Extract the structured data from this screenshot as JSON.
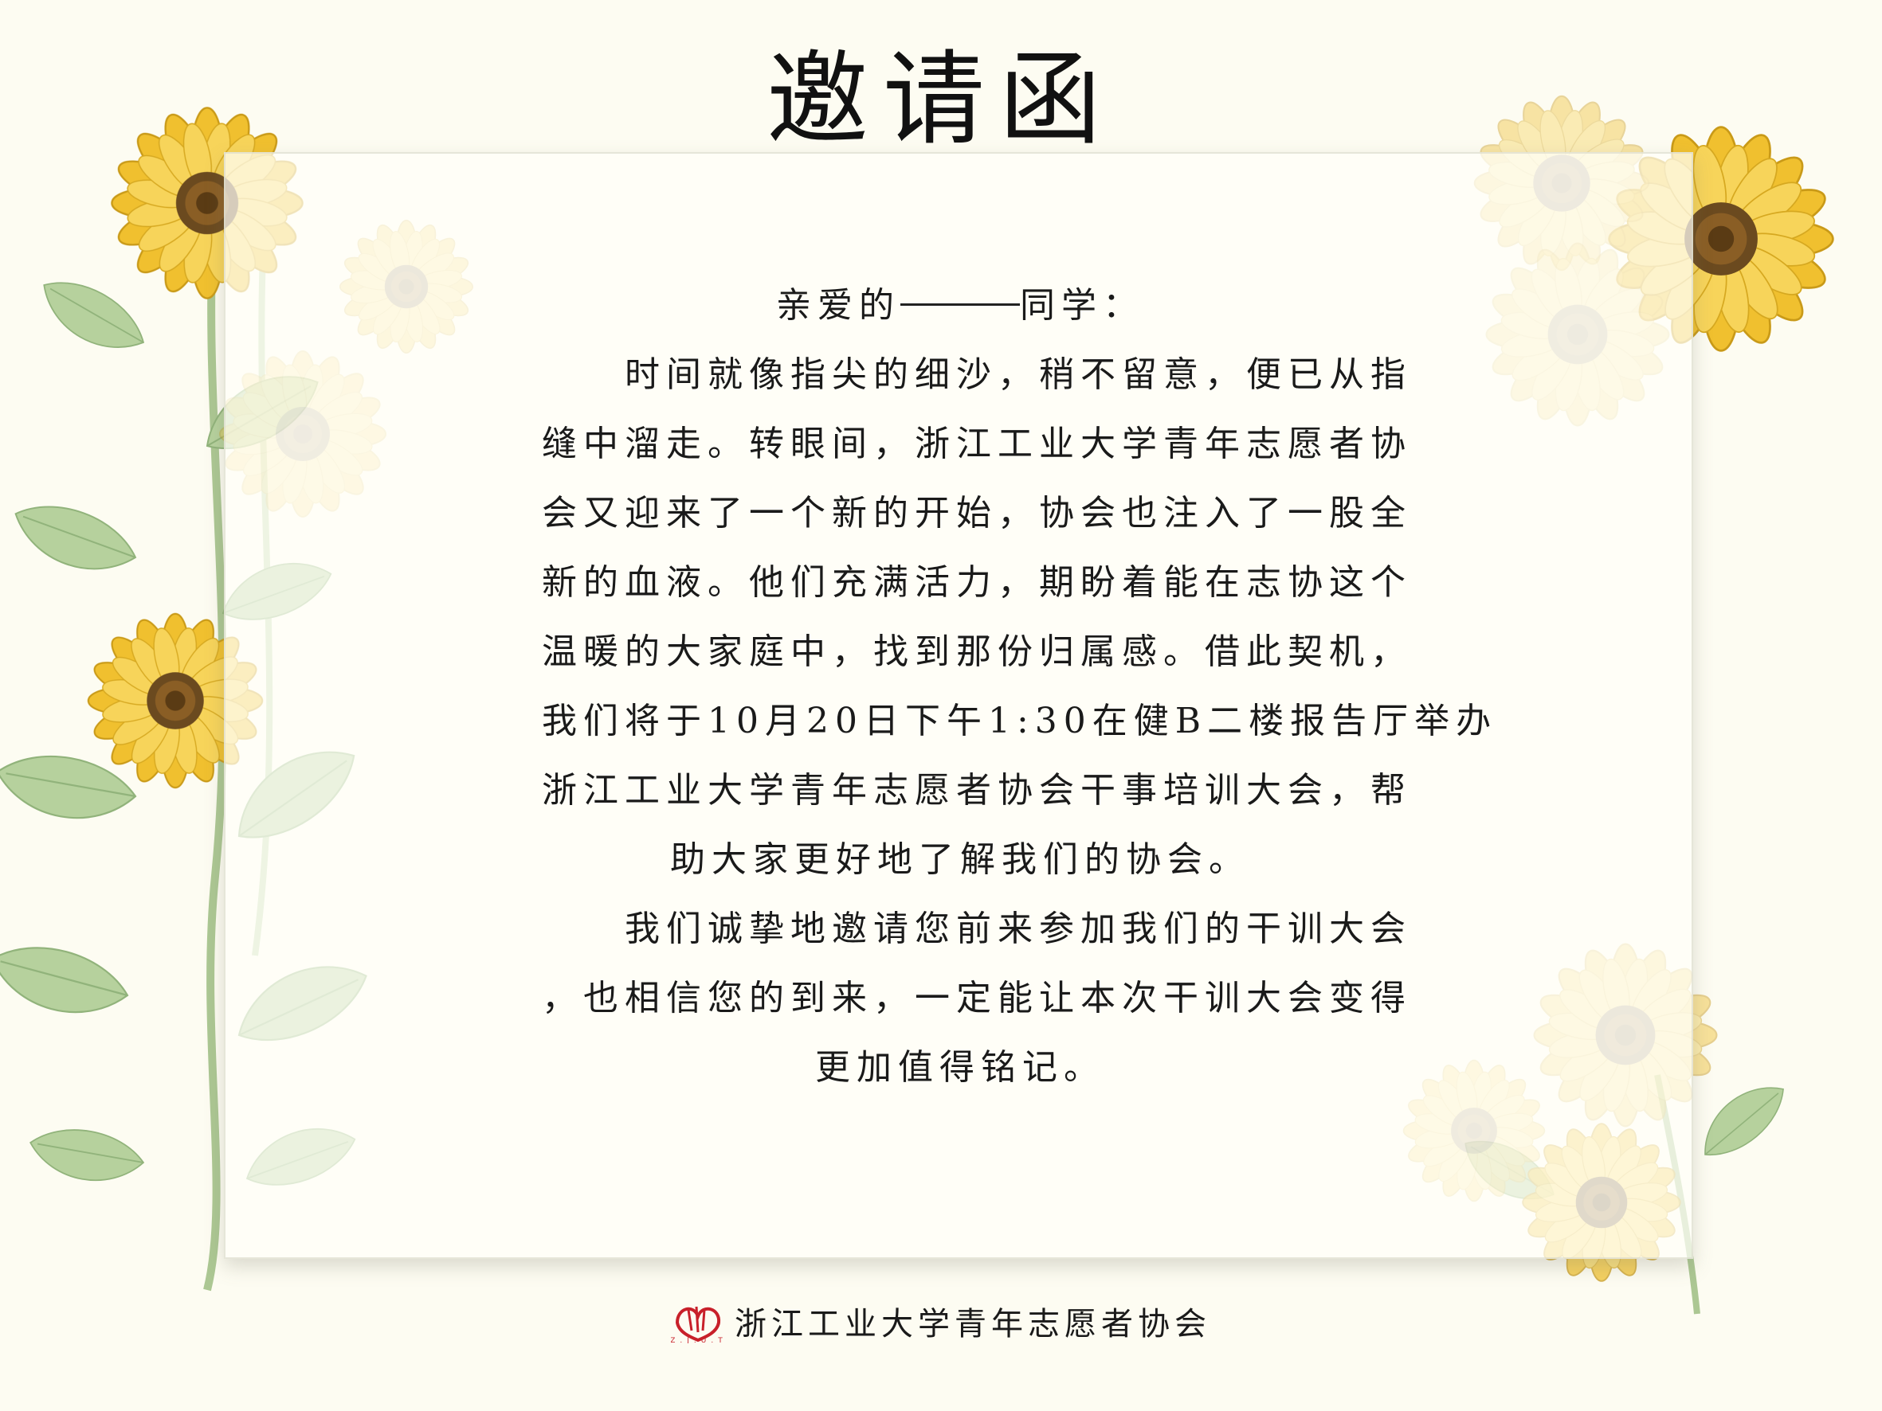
{
  "title": "邀请函",
  "letter": {
    "salutation_prefix": "亲爱的",
    "salutation_suffix": "同学：",
    "lines": [
      "　　时间就像指尖的细沙，稍不留意，便已从指",
      "缝中溜走。转眼间，浙江工业大学青年志愿者协",
      "会又迎来了一个新的开始，协会也注入了一股全",
      "新的血液。他们充满活力，期盼着能在志协这个",
      "温暖的大家庭中，找到那份归属感。借此契机，",
      "我们将于10月20日下午1:30在健B二楼报告厅举办",
      "浙江工业大学青年志愿者协会干事培训大会，帮"
    ],
    "line_center_1": "助大家更好地了解我们的协会。",
    "lines2": [
      "　　我们诚挚地邀请您前来参加我们的干训大会",
      "，也相信您的到来，一定能让本次干训大会变得"
    ],
    "line_center_2": "更加值得铭记。"
  },
  "footer": {
    "org_name": "浙江工业大学青年志愿者协会",
    "logo_text": "Z.J.U.T"
  },
  "colors": {
    "background": "#fdfcf2",
    "petal": "#f3c433",
    "leaf": "#a9c98e"
  }
}
